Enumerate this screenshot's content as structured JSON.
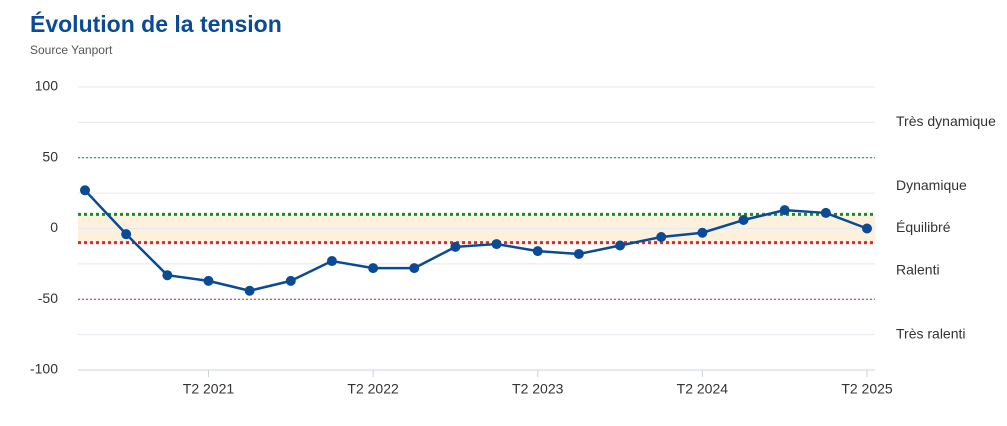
{
  "chart_data": {
    "type": "line",
    "title": "Évolution de la tension",
    "subtitle": "Source Yanport",
    "categories": [
      null,
      null,
      null,
      "T2 2021",
      null,
      null,
      null,
      "T2 2022",
      null,
      null,
      null,
      "T2 2023",
      null,
      null,
      null,
      "T2 2024",
      null,
      null,
      null,
      "T2 2025"
    ],
    "values": [
      27,
      -4,
      -33,
      -37,
      -44,
      -37,
      -23,
      -28,
      -28,
      -13,
      -11,
      -16,
      -18,
      -12,
      -6,
      -3,
      6,
      13,
      11,
      0
    ],
    "color": "#0b4a94",
    "ylim": [
      -100,
      100
    ],
    "yticks": [
      100,
      50,
      0,
      -50,
      -100
    ],
    "minor_yticks": [
      75,
      25,
      -25,
      -75
    ],
    "grid": true,
    "zones": [
      {
        "label": "Très dynamique",
        "from": 50,
        "to": 100
      },
      {
        "label": "Dynamique",
        "from": 10,
        "to": 50
      },
      {
        "label": "Équilibré",
        "from": -10,
        "to": 10,
        "fill": "#fdf1de"
      },
      {
        "label": "Ralenti",
        "from": -50,
        "to": -10
      },
      {
        "label": "Très ralenti",
        "from": -100,
        "to": -50
      }
    ],
    "reference_lines": [
      {
        "value": 50,
        "color": "#2e7d32",
        "width": 1
      },
      {
        "value": 10,
        "color": "#1e8a2e",
        "width": 3
      },
      {
        "value": -10,
        "color": "#d32f2f",
        "width": 3
      },
      {
        "value": -50,
        "color": "#c62828",
        "width": 1
      }
    ]
  }
}
